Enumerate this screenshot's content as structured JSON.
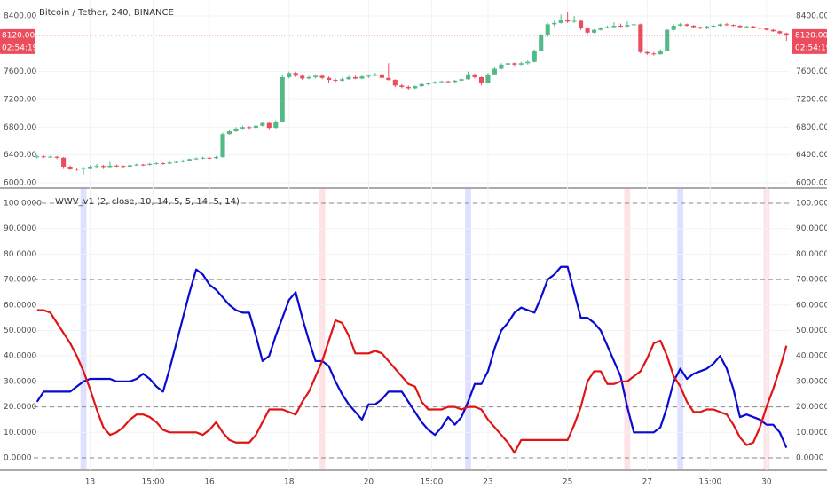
{
  "chart_data": [
    {
      "type": "candlestick",
      "title": "Bitcoin / Tether, 240, BINANCE",
      "up_color": "#53b987",
      "down_color": "#eb4d5c",
      "xlim": [
        -0.5,
        113.5
      ],
      "ylim": [
        5880,
        8480
      ],
      "yticks": [
        {
          "value": 6000,
          "label": "6000.00"
        },
        {
          "value": 6400,
          "label": "6400.00"
        },
        {
          "value": 6800,
          "label": "6800.00"
        },
        {
          "value": 7200,
          "label": "7200.00"
        },
        {
          "value": 7600,
          "label": "7600.00"
        },
        {
          "value": 8400,
          "label": "8400.00"
        }
      ],
      "last_price": {
        "value": 8120,
        "label": "8120.00"
      },
      "countdown": "02:54:19",
      "ohlc": [
        [
          6370,
          6400,
          6350,
          6380
        ],
        [
          6380,
          6395,
          6355,
          6370
        ],
        [
          6370,
          6390,
          6360,
          6375
        ],
        [
          6375,
          6385,
          6340,
          6360
        ],
        [
          6360,
          6370,
          6210,
          6230
        ],
        [
          6230,
          6245,
          6185,
          6200
        ],
        [
          6200,
          6215,
          6170,
          6190
        ],
        [
          6190,
          6230,
          6120,
          6210
        ],
        [
          6210,
          6250,
          6200,
          6230
        ],
        [
          6230,
          6270,
          6215,
          6240
        ],
        [
          6240,
          6255,
          6210,
          6225
        ],
        [
          6225,
          6300,
          6215,
          6245
        ],
        [
          6245,
          6260,
          6225,
          6240
        ],
        [
          6240,
          6250,
          6215,
          6230
        ],
        [
          6230,
          6265,
          6220,
          6250
        ],
        [
          6250,
          6275,
          6240,
          6260
        ],
        [
          6260,
          6270,
          6240,
          6255
        ],
        [
          6255,
          6285,
          6245,
          6270
        ],
        [
          6270,
          6295,
          6260,
          6280
        ],
        [
          6280,
          6290,
          6260,
          6275
        ],
        [
          6275,
          6305,
          6265,
          6290
        ],
        [
          6290,
          6315,
          6280,
          6300
        ],
        [
          6300,
          6335,
          6290,
          6320
        ],
        [
          6320,
          6350,
          6310,
          6340
        ],
        [
          6340,
          6365,
          6330,
          6350
        ],
        [
          6350,
          6375,
          6340,
          6360
        ],
        [
          6360,
          6370,
          6340,
          6355
        ],
        [
          6355,
          6385,
          6345,
          6370
        ],
        [
          6370,
          6720,
          6360,
          6700
        ],
        [
          6700,
          6760,
          6690,
          6740
        ],
        [
          6740,
          6800,
          6730,
          6780
        ],
        [
          6780,
          6820,
          6770,
          6800
        ],
        [
          6800,
          6815,
          6775,
          6790
        ],
        [
          6790,
          6840,
          6780,
          6820
        ],
        [
          6820,
          6880,
          6810,
          6860
        ],
        [
          6860,
          6870,
          6770,
          6790
        ],
        [
          6790,
          6900,
          6780,
          6880
        ],
        [
          6880,
          7560,
          6870,
          7520
        ],
        [
          7520,
          7600,
          7500,
          7580
        ],
        [
          7580,
          7600,
          7520,
          7540
        ],
        [
          7540,
          7560,
          7480,
          7500
        ],
        [
          7500,
          7540,
          7490,
          7520
        ],
        [
          7520,
          7560,
          7500,
          7540
        ],
        [
          7540,
          7560,
          7490,
          7510
        ],
        [
          7510,
          7530,
          7440,
          7480
        ],
        [
          7480,
          7500,
          7450,
          7470
        ],
        [
          7470,
          7510,
          7460,
          7490
        ],
        [
          7490,
          7540,
          7480,
          7520
        ],
        [
          7520,
          7540,
          7490,
          7500
        ],
        [
          7500,
          7550,
          7490,
          7530
        ],
        [
          7530,
          7560,
          7510,
          7540
        ],
        [
          7540,
          7580,
          7530,
          7560
        ],
        [
          7560,
          7570,
          7500,
          7510
        ],
        [
          7510,
          7720,
          7470,
          7480
        ],
        [
          7480,
          7490,
          7380,
          7400
        ],
        [
          7400,
          7420,
          7360,
          7380
        ],
        [
          7380,
          7400,
          7340,
          7360
        ],
        [
          7360,
          7400,
          7350,
          7390
        ],
        [
          7390,
          7430,
          7380,
          7420
        ],
        [
          7420,
          7440,
          7400,
          7430
        ],
        [
          7430,
          7460,
          7420,
          7450
        ],
        [
          7450,
          7470,
          7430,
          7460
        ],
        [
          7460,
          7470,
          7440,
          7450
        ],
        [
          7450,
          7480,
          7440,
          7470
        ],
        [
          7470,
          7500,
          7460,
          7490
        ],
        [
          7490,
          7600,
          7480,
          7560
        ],
        [
          7560,
          7570,
          7500,
          7520
        ],
        [
          7520,
          7530,
          7400,
          7440
        ],
        [
          7440,
          7580,
          7430,
          7560
        ],
        [
          7560,
          7660,
          7550,
          7640
        ],
        [
          7640,
          7720,
          7630,
          7700
        ],
        [
          7700,
          7740,
          7690,
          7720
        ],
        [
          7720,
          7730,
          7680,
          7700
        ],
        [
          7700,
          7740,
          7690,
          7720
        ],
        [
          7720,
          7760,
          7700,
          7740
        ],
        [
          7740,
          7920,
          7730,
          7900
        ],
        [
          7900,
          8140,
          7890,
          8120
        ],
        [
          8120,
          8300,
          8100,
          8280
        ],
        [
          8280,
          8330,
          8250,
          8300
        ],
        [
          8300,
          8420,
          8290,
          8340
        ],
        [
          8340,
          8460,
          8300,
          8320
        ],
        [
          8320,
          8400,
          8300,
          8330
        ],
        [
          8330,
          8340,
          8200,
          8220
        ],
        [
          8220,
          8240,
          8140,
          8160
        ],
        [
          8160,
          8210,
          8150,
          8200
        ],
        [
          8200,
          8240,
          8190,
          8230
        ],
        [
          8230,
          8260,
          8220,
          8240
        ],
        [
          8240,
          8310,
          8230,
          8260
        ],
        [
          8260,
          8290,
          8240,
          8250
        ],
        [
          8250,
          8320,
          8240,
          8270
        ],
        [
          8270,
          8300,
          8260,
          8280
        ],
        [
          8280,
          8290,
          7860,
          7880
        ],
        [
          7880,
          7900,
          7840,
          7860
        ],
        [
          7860,
          7880,
          7830,
          7850
        ],
        [
          7850,
          7920,
          7840,
          7900
        ],
        [
          7900,
          8210,
          7890,
          8200
        ],
        [
          8200,
          8280,
          8190,
          8260
        ],
        [
          8260,
          8300,
          8250,
          8280
        ],
        [
          8280,
          8290,
          8250,
          8260
        ],
        [
          8260,
          8270,
          8230,
          8240
        ],
        [
          8240,
          8250,
          8210,
          8220
        ],
        [
          8220,
          8260,
          8210,
          8250
        ],
        [
          8250,
          8270,
          8240,
          8260
        ],
        [
          8260,
          8290,
          8250,
          8280
        ],
        [
          8280,
          8300,
          8260,
          8270
        ],
        [
          8270,
          8280,
          8250,
          8260
        ],
        [
          8260,
          8270,
          8230,
          8240
        ],
        [
          8240,
          8260,
          8230,
          8250
        ],
        [
          8250,
          8260,
          8220,
          8230
        ],
        [
          8230,
          8240,
          8210,
          8220
        ],
        [
          8220,
          8230,
          8190,
          8200
        ],
        [
          8200,
          8210,
          8170,
          8180
        ],
        [
          8180,
          8190,
          8140,
          8150
        ],
        [
          8150,
          8160,
          8040,
          8120
        ]
      ]
    },
    {
      "type": "line",
      "title": "WWV_v1 (2, close, 10, 14, 5, 5, 14, 5, 14)",
      "xlim": [
        -0.5,
        113.5
      ],
      "ylim": [
        -4,
        102
      ],
      "yticks": [
        {
          "value": 0,
          "label": "0.0000"
        },
        {
          "value": 10,
          "label": "10.0000"
        },
        {
          "value": 20,
          "label": "20.0000"
        },
        {
          "value": 30,
          "label": "30.0000"
        },
        {
          "value": 40,
          "label": "40.0000"
        },
        {
          "value": 50,
          "label": "50.0000"
        },
        {
          "value": 60,
          "label": "60.0000"
        },
        {
          "value": 70,
          "label": "70.0000"
        },
        {
          "value": 80,
          "label": "80.0000"
        },
        {
          "value": 90,
          "label": "90.0000"
        },
        {
          "value": 100,
          "label": "100.0000"
        }
      ],
      "levels": [
        100,
        70,
        20,
        0
      ],
      "xticks": [
        {
          "value": 8,
          "label": "13"
        },
        {
          "value": 17.5,
          "label": "15:00"
        },
        {
          "value": 26,
          "label": "16"
        },
        {
          "value": 38,
          "label": "18"
        },
        {
          "value": 50,
          "label": "20"
        },
        {
          "value": 59.5,
          "label": "15:00"
        },
        {
          "value": 68,
          "label": "23"
        },
        {
          "value": 80,
          "label": "25"
        },
        {
          "value": 92,
          "label": "27"
        },
        {
          "value": 101.5,
          "label": "15:00"
        },
        {
          "value": 110,
          "label": "30"
        }
      ],
      "highlights": [
        {
          "x": 7,
          "color": "rgba(110,110,255,0.22)"
        },
        {
          "x": 43,
          "color": "rgba(255,110,130,0.2)"
        },
        {
          "x": 65,
          "color": "rgba(110,110,255,0.22)"
        },
        {
          "x": 89,
          "color": "rgba(255,110,130,0.2)"
        },
        {
          "x": 97,
          "color": "rgba(110,110,255,0.22)"
        },
        {
          "x": 110,
          "color": "rgba(255,110,130,0.2)"
        }
      ],
      "series": [
        {
          "color": "#0a0ad0",
          "values": [
            22,
            26,
            26,
            26,
            26,
            26,
            28,
            30,
            31,
            31,
            31,
            31,
            30,
            30,
            30,
            31,
            33,
            31,
            28,
            26,
            35,
            45,
            55,
            65,
            74,
            72,
            68,
            66,
            63,
            60,
            58,
            57,
            57,
            48,
            38,
            40,
            48,
            55,
            62,
            65,
            55,
            46,
            38,
            38,
            36,
            30,
            25,
            21,
            18,
            15,
            21,
            21,
            23,
            26,
            26,
            26,
            22,
            18,
            14,
            11,
            9,
            12,
            16,
            13,
            16,
            22,
            29,
            29,
            34,
            43,
            50,
            53,
            57,
            59,
            58,
            57,
            63,
            70,
            72,
            75,
            75,
            65,
            55,
            55,
            53,
            50,
            44,
            38,
            32,
            20,
            10,
            10,
            10,
            10,
            12,
            20,
            30,
            35,
            31,
            33,
            34,
            35,
            37,
            40,
            35,
            27,
            16,
            17,
            16,
            15,
            13,
            13,
            10,
            4
          ]
        },
        {
          "color": "#e01414",
          "values": [
            58,
            58,
            57,
            53,
            49,
            45,
            40,
            34,
            27,
            19,
            12,
            9,
            10,
            12,
            15,
            17,
            17,
            16,
            14,
            11,
            10,
            10,
            10,
            10,
            10,
            9,
            11,
            14,
            10,
            7,
            6,
            6,
            6,
            9,
            14,
            19,
            19,
            19,
            18,
            17,
            22,
            26,
            32,
            38,
            46,
            54,
            53,
            48,
            41,
            41,
            41,
            42,
            41,
            38,
            35,
            32,
            29,
            28,
            22,
            19,
            19,
            19,
            20,
            20,
            19,
            20,
            20,
            19,
            15,
            12,
            9,
            6,
            2,
            7,
            7,
            7,
            7,
            7,
            7,
            7,
            7,
            13,
            20,
            30,
            34,
            34,
            29,
            29,
            30,
            30,
            32,
            34,
            39,
            45,
            46,
            40,
            32,
            28,
            22,
            18,
            18,
            19,
            19,
            18,
            17,
            13,
            8,
            5,
            6,
            12,
            20,
            27,
            35,
            44
          ]
        }
      ]
    }
  ]
}
